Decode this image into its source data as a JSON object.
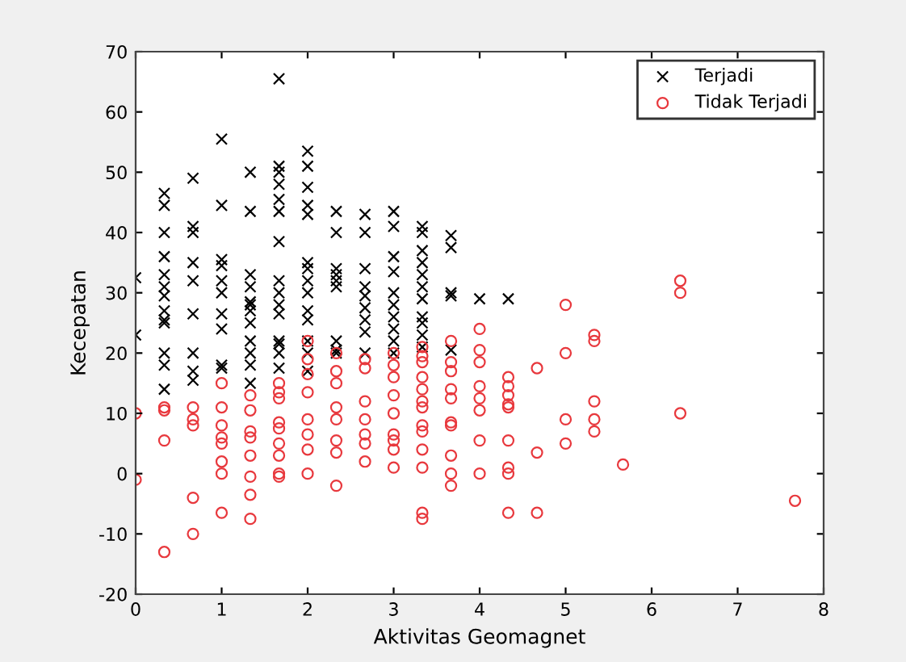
{
  "chart_data": {
    "type": "scatter",
    "xlabel": "Aktivitas Geomagnet",
    "ylabel": "Kecepatan",
    "xlim": [
      0,
      8
    ],
    "ylim": [
      -20,
      70
    ],
    "xticks": [
      0,
      1,
      2,
      3,
      4,
      5,
      6,
      7,
      8
    ],
    "yticks": [
      -20,
      -10,
      0,
      10,
      20,
      30,
      40,
      50,
      60,
      70
    ],
    "grid": false,
    "legend": "top right",
    "series": [
      {
        "name": "Terjadi",
        "color": "#000000",
        "marker": "cross",
        "x": [
          0,
          0,
          0.333,
          0.333,
          0.333,
          0.333,
          0.333,
          0.333,
          0.333,
          0.333,
          0.333,
          0.333,
          0.333,
          0.333,
          0.333,
          0.667,
          0.667,
          0.667,
          0.667,
          0.667,
          0.667,
          0.667,
          0.667,
          0.667,
          1,
          1,
          1,
          1,
          1,
          1,
          1,
          1,
          1,
          1,
          1.333,
          1.333,
          1.333,
          1.333,
          1.333,
          1.333,
          1.333,
          1.333,
          1.333,
          1.333,
          1.333,
          1.333,
          1.667,
          1.667,
          1.667,
          1.667,
          1.667,
          1.667,
          1.667,
          1.667,
          1.667,
          1.667,
          1.667,
          1.667,
          1.667,
          1.667,
          1.667,
          2,
          2,
          2,
          2,
          2,
          2,
          2,
          2,
          2,
          2,
          2,
          2,
          2,
          2,
          2.333,
          2.333,
          2.333,
          2.333,
          2.333,
          2.333,
          2.333,
          2.333,
          2.333,
          2.667,
          2.667,
          2.667,
          2.667,
          2.667,
          2.667,
          2.667,
          2.667,
          2.667,
          3,
          3,
          3,
          3,
          3,
          3,
          3,
          3,
          3,
          3,
          3.333,
          3.333,
          3.333,
          3.333,
          3.333,
          3.333,
          3.333,
          3.333,
          3.333,
          3.333,
          3.333,
          3.667,
          3.667,
          3.667,
          3.667,
          3.667,
          4,
          4.333
        ],
        "values": [
          32.5,
          23,
          46.5,
          44.5,
          40,
          36,
          33,
          31,
          29.5,
          27,
          25.5,
          25,
          20,
          18,
          14,
          49,
          41,
          40,
          35,
          32,
          26.5,
          20,
          17,
          15.5,
          55.5,
          44.5,
          35.5,
          34.5,
          32,
          30,
          26.5,
          24,
          18,
          17.5,
          50,
          43.5,
          33,
          31,
          28.5,
          28,
          27,
          25,
          22,
          20,
          18,
          15,
          65.5,
          51,
          50,
          48,
          45.5,
          43.5,
          38.5,
          32,
          30,
          28,
          26.5,
          22,
          21.5,
          20,
          17.5,
          53.5,
          51,
          47.5,
          44.5,
          43,
          35,
          34,
          32,
          30,
          27,
          25.5,
          22,
          20,
          17,
          43.5,
          40,
          34,
          33,
          32,
          31,
          22,
          20.5,
          20,
          43,
          40,
          34,
          31,
          29.5,
          27.5,
          25.5,
          23.5,
          20,
          43.5,
          41,
          36,
          33.5,
          30,
          28,
          26,
          24,
          22,
          20,
          41,
          40,
          37,
          35,
          33,
          31,
          29,
          26,
          25,
          23,
          21,
          39.5,
          37.5,
          30,
          29.5,
          20.5,
          29,
          29
        ]
      },
      {
        "name": "Tidak Terjadi",
        "color": "#e8383d",
        "marker": "circle",
        "x": [
          0,
          0,
          0.333,
          0.333,
          0.333,
          0.333,
          0.667,
          0.667,
          0.667,
          0.667,
          0.667,
          1,
          1,
          1,
          1,
          1,
          1,
          1,
          1,
          1.333,
          1.333,
          1.333,
          1.333,
          1.333,
          1.333,
          1.333,
          1.333,
          1.667,
          1.667,
          1.667,
          1.667,
          1.667,
          1.667,
          1.667,
          1.667,
          1.667,
          2,
          2,
          2,
          2,
          2,
          2,
          2,
          2,
          2.333,
          2.333,
          2.333,
          2.333,
          2.333,
          2.333,
          2.333,
          2.333,
          2.667,
          2.667,
          2.667,
          2.667,
          2.667,
          2.667,
          2.667,
          3,
          3,
          3,
          3,
          3,
          3,
          3,
          3,
          3,
          3.333,
          3.333,
          3.333,
          3.333,
          3.333,
          3.333,
          3.333,
          3.333,
          3.333,
          3.333,
          3.333,
          3.333,
          3.333,
          3.667,
          3.667,
          3.667,
          3.667,
          3.667,
          3.667,
          3.667,
          3.667,
          3.667,
          3.667,
          4,
          4,
          4,
          4,
          4,
          4,
          4,
          4,
          4.333,
          4.333,
          4.333,
          4.333,
          4.333,
          4.333,
          4.333,
          4.333,
          4.333,
          4.667,
          4.667,
          4.667,
          5,
          5,
          5,
          5,
          5.333,
          5.333,
          5.333,
          5.333,
          5.333,
          5.667,
          6.333,
          6.333,
          6.333,
          7.667
        ],
        "values": [
          10,
          -1,
          11,
          10.5,
          5.5,
          -13,
          11,
          9,
          8,
          -4,
          -10,
          15,
          11,
          8,
          6,
          5,
          2,
          0,
          -6.5,
          13,
          10.5,
          7,
          6,
          3,
          -0.5,
          -3.5,
          -7.5,
          15,
          13.5,
          12.5,
          8.5,
          7.5,
          5,
          3,
          0,
          -0.5,
          22,
          19,
          16.5,
          13.5,
          9,
          6.5,
          4,
          0,
          20,
          17,
          15,
          11,
          9,
          5.5,
          3.5,
          -2,
          19,
          17.5,
          12,
          9,
          6.5,
          5,
          2,
          20,
          18,
          16,
          13,
          10,
          6.5,
          5.5,
          4,
          1,
          21,
          19.5,
          18.5,
          16,
          14,
          12,
          11,
          8,
          7,
          4,
          1,
          -6.5,
          -7.5,
          22,
          18.5,
          17,
          14,
          12.5,
          8.5,
          8,
          3,
          0,
          -2,
          24,
          20.5,
          18.5,
          14.5,
          12.5,
          10.5,
          5.5,
          0,
          16,
          14.5,
          13,
          11.5,
          11,
          5.5,
          1,
          0,
          -6.5,
          17.5,
          3.5,
          -6.5,
          28,
          20,
          9,
          5,
          23,
          22,
          12,
          9,
          7,
          1.5,
          32,
          30,
          10,
          -4.5
        ]
      }
    ]
  }
}
